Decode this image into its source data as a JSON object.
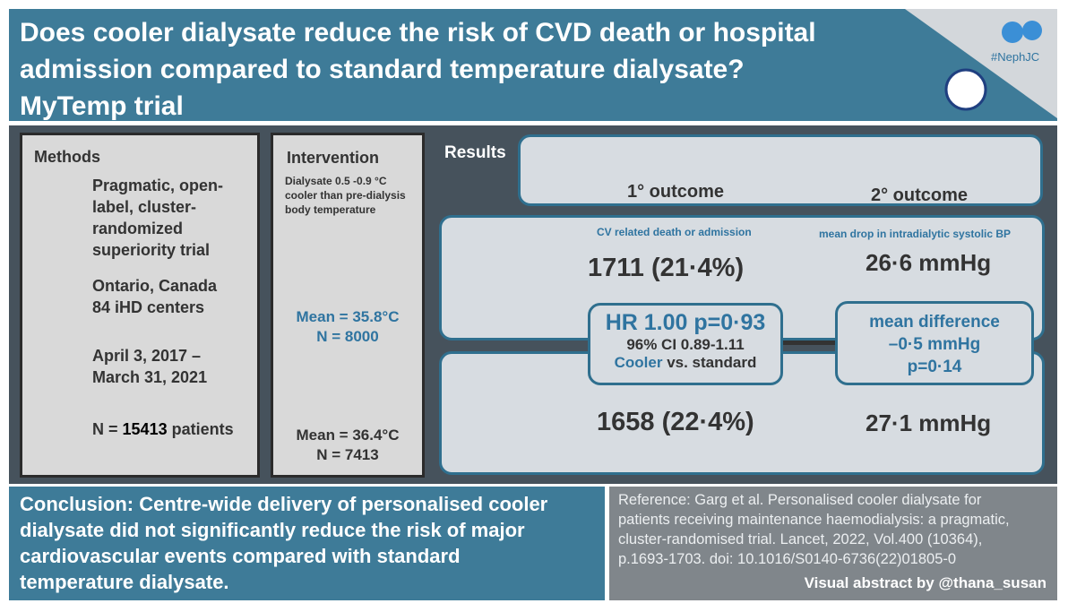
{
  "header": {
    "title": [
      "Does cooler dialysate reduce the risk of CVD death or hospital",
      "admission compared to standard temperature dialysate?",
      "MyTemp trial"
    ],
    "tag": "#NephJC"
  },
  "methods": {
    "title": "Methods",
    "design": [
      "Pragmatic, open-",
      "label, cluster-",
      "randomized",
      "superiority trial"
    ],
    "setting": [
      "Ontario, Canada",
      "84 iHD centers"
    ],
    "dates": [
      "April 3, 2017 –",
      "March 31, 2021"
    ],
    "n": {
      "prefix": "N =",
      "value": "15413",
      "suffix": "patients"
    }
  },
  "intervention": {
    "title": "Intervention",
    "description": [
      "Dialysate 0.5 -0.9 °C",
      "cooler than pre-dialysis",
      "body temperature"
    ],
    "cooler": {
      "mean": "Mean = 35.8°C",
      "n": "N = 8000"
    },
    "standard": {
      "mean": "Mean = 36.4°C",
      "n": "N = 7413"
    }
  },
  "results": {
    "title": "Results",
    "primary": "1° outcome",
    "secondary": "2° outcome",
    "primary_label": "CV related death or admission",
    "secondary_label": "mean drop in intradialytic systolic BP",
    "cooler": {
      "primary": "1711 (21·4%)",
      "secondary": "26·6 mmHg"
    },
    "standard": {
      "primary": "1658 (22·4%)",
      "secondary": "27·1 mmHg"
    },
    "hr": {
      "line1": "HR 1.00 p=0·93",
      "line2": "96% CI 0.89-1.11",
      "group": "Cooler",
      "versus": "vs. standard"
    },
    "mean_difference": {
      "label": "mean difference",
      "value": "–0·5 mmHg",
      "p": "p=0·14"
    }
  },
  "conclusion": [
    "Conclusion: Centre-wide delivery of personalised cooler",
    "dialysate did not significantly reduce the risk of major",
    "cardiovascular events compared with standard",
    "temperature dialysate."
  ],
  "reference": {
    "lines": [
      "Reference: Garg et al. Personalised cooler dialysate for",
      "patients receiving maintenance haemodialysis: a pragmatic,",
      "cluster-randomised trial. Lancet, 2022, Vol.400 (10364),",
      "p.1693-1703. doi: 10.1016/S0140-6736(22)01805-0"
    ],
    "credit": "Visual abstract by @thana_susan"
  }
}
